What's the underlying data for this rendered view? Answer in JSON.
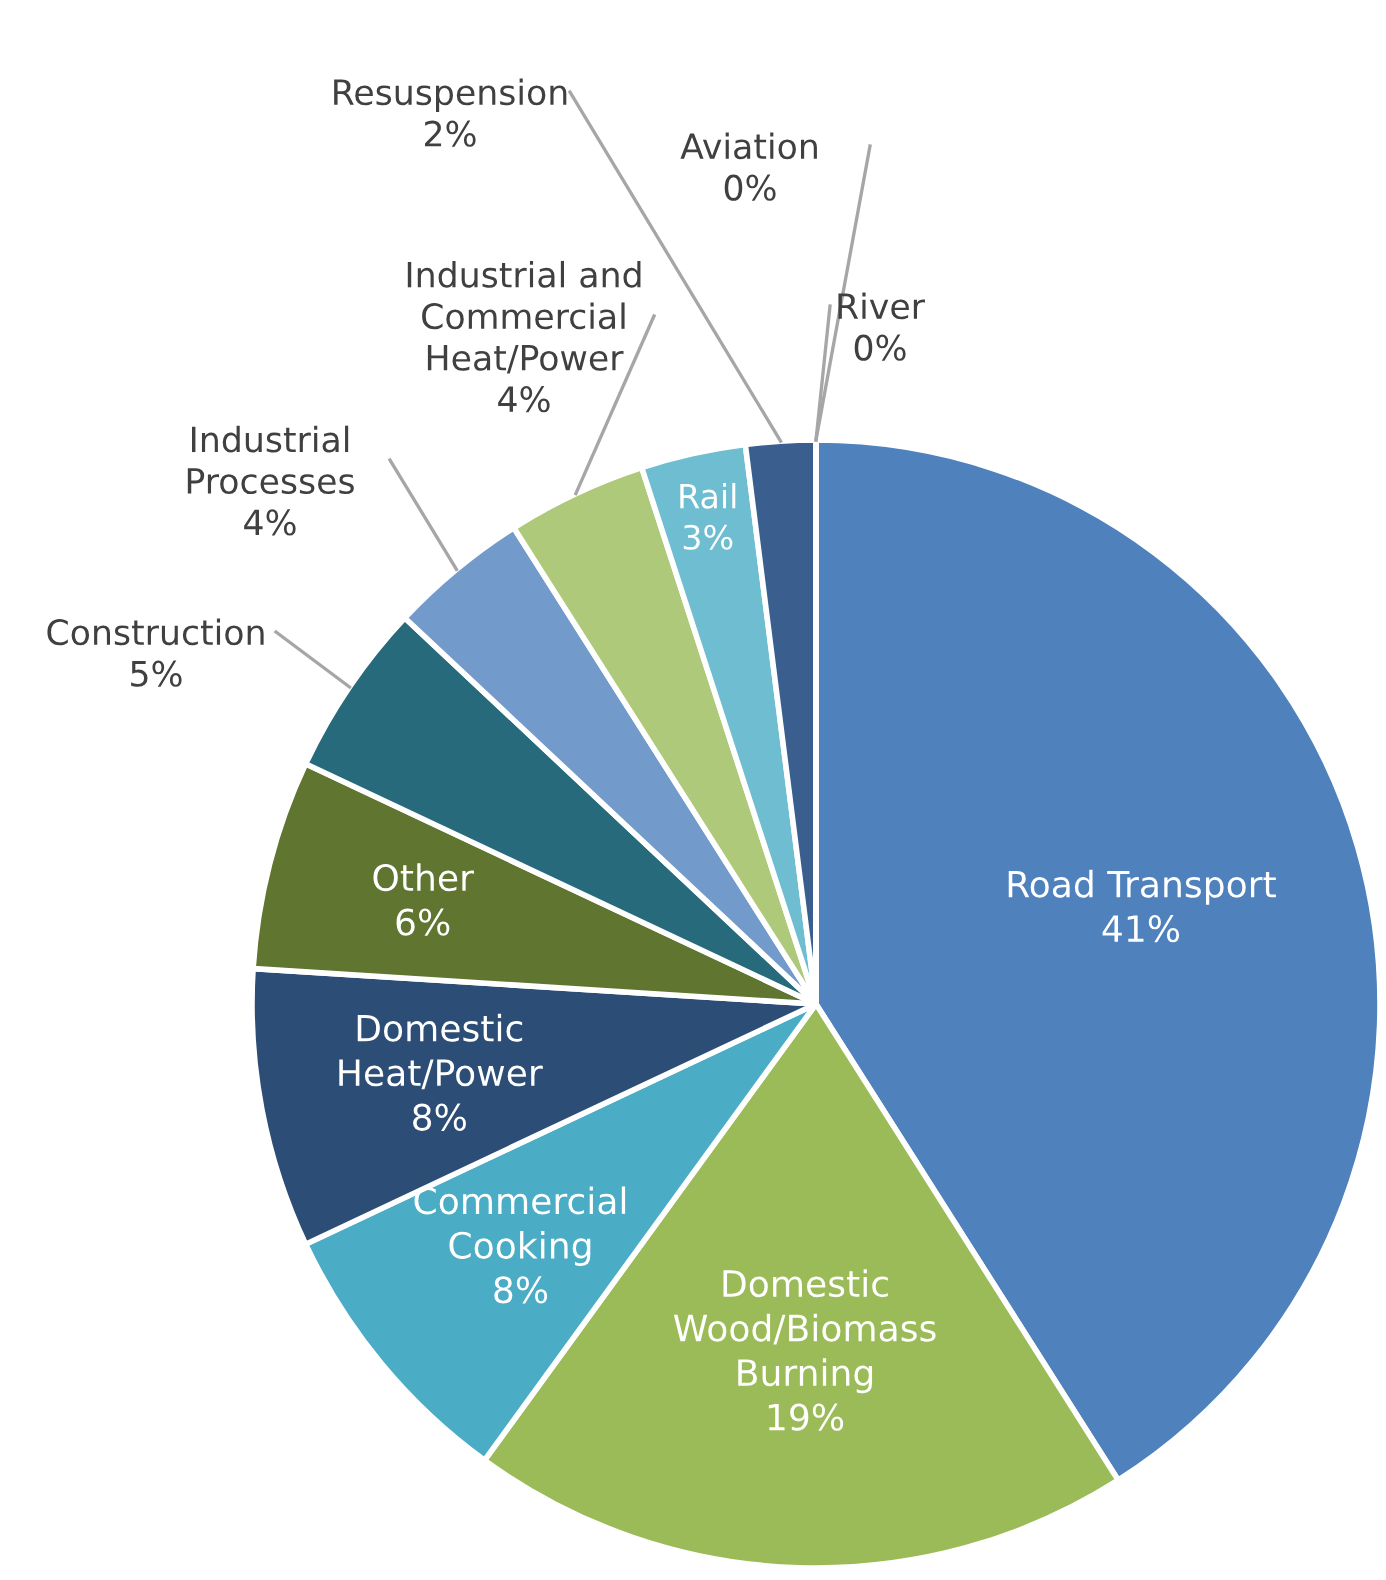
{
  "chart_data": {
    "type": "pie",
    "categories": [
      "Road Transport",
      "Domestic Wood/Biomass Burning",
      "Commercial Cooking",
      "Domestic Heat/Power",
      "Other",
      "Construction",
      "Industrial Processes",
      "Industrial and Commercial Heat/Power",
      "Rail",
      "Resuspension",
      "Aviation",
      "River"
    ],
    "values": [
      41,
      19,
      8,
      8,
      6,
      5,
      4,
      4,
      3,
      2,
      0,
      0
    ],
    "value_labels": [
      "41%",
      "19%",
      "8%",
      "8%",
      "6%",
      "5%",
      "4%",
      "4%",
      "3%",
      "2%",
      "0%",
      "0%"
    ],
    "colors": [
      "#4f81bd",
      "#9bbb59",
      "#4bacc6",
      "#2c4d75",
      "#5f7530",
      "#276a7c",
      "#729aca",
      "#afc97a",
      "#6fbdd1",
      "#3a5f8f",
      "#7f9fc8",
      "#4f81bd"
    ]
  }
}
